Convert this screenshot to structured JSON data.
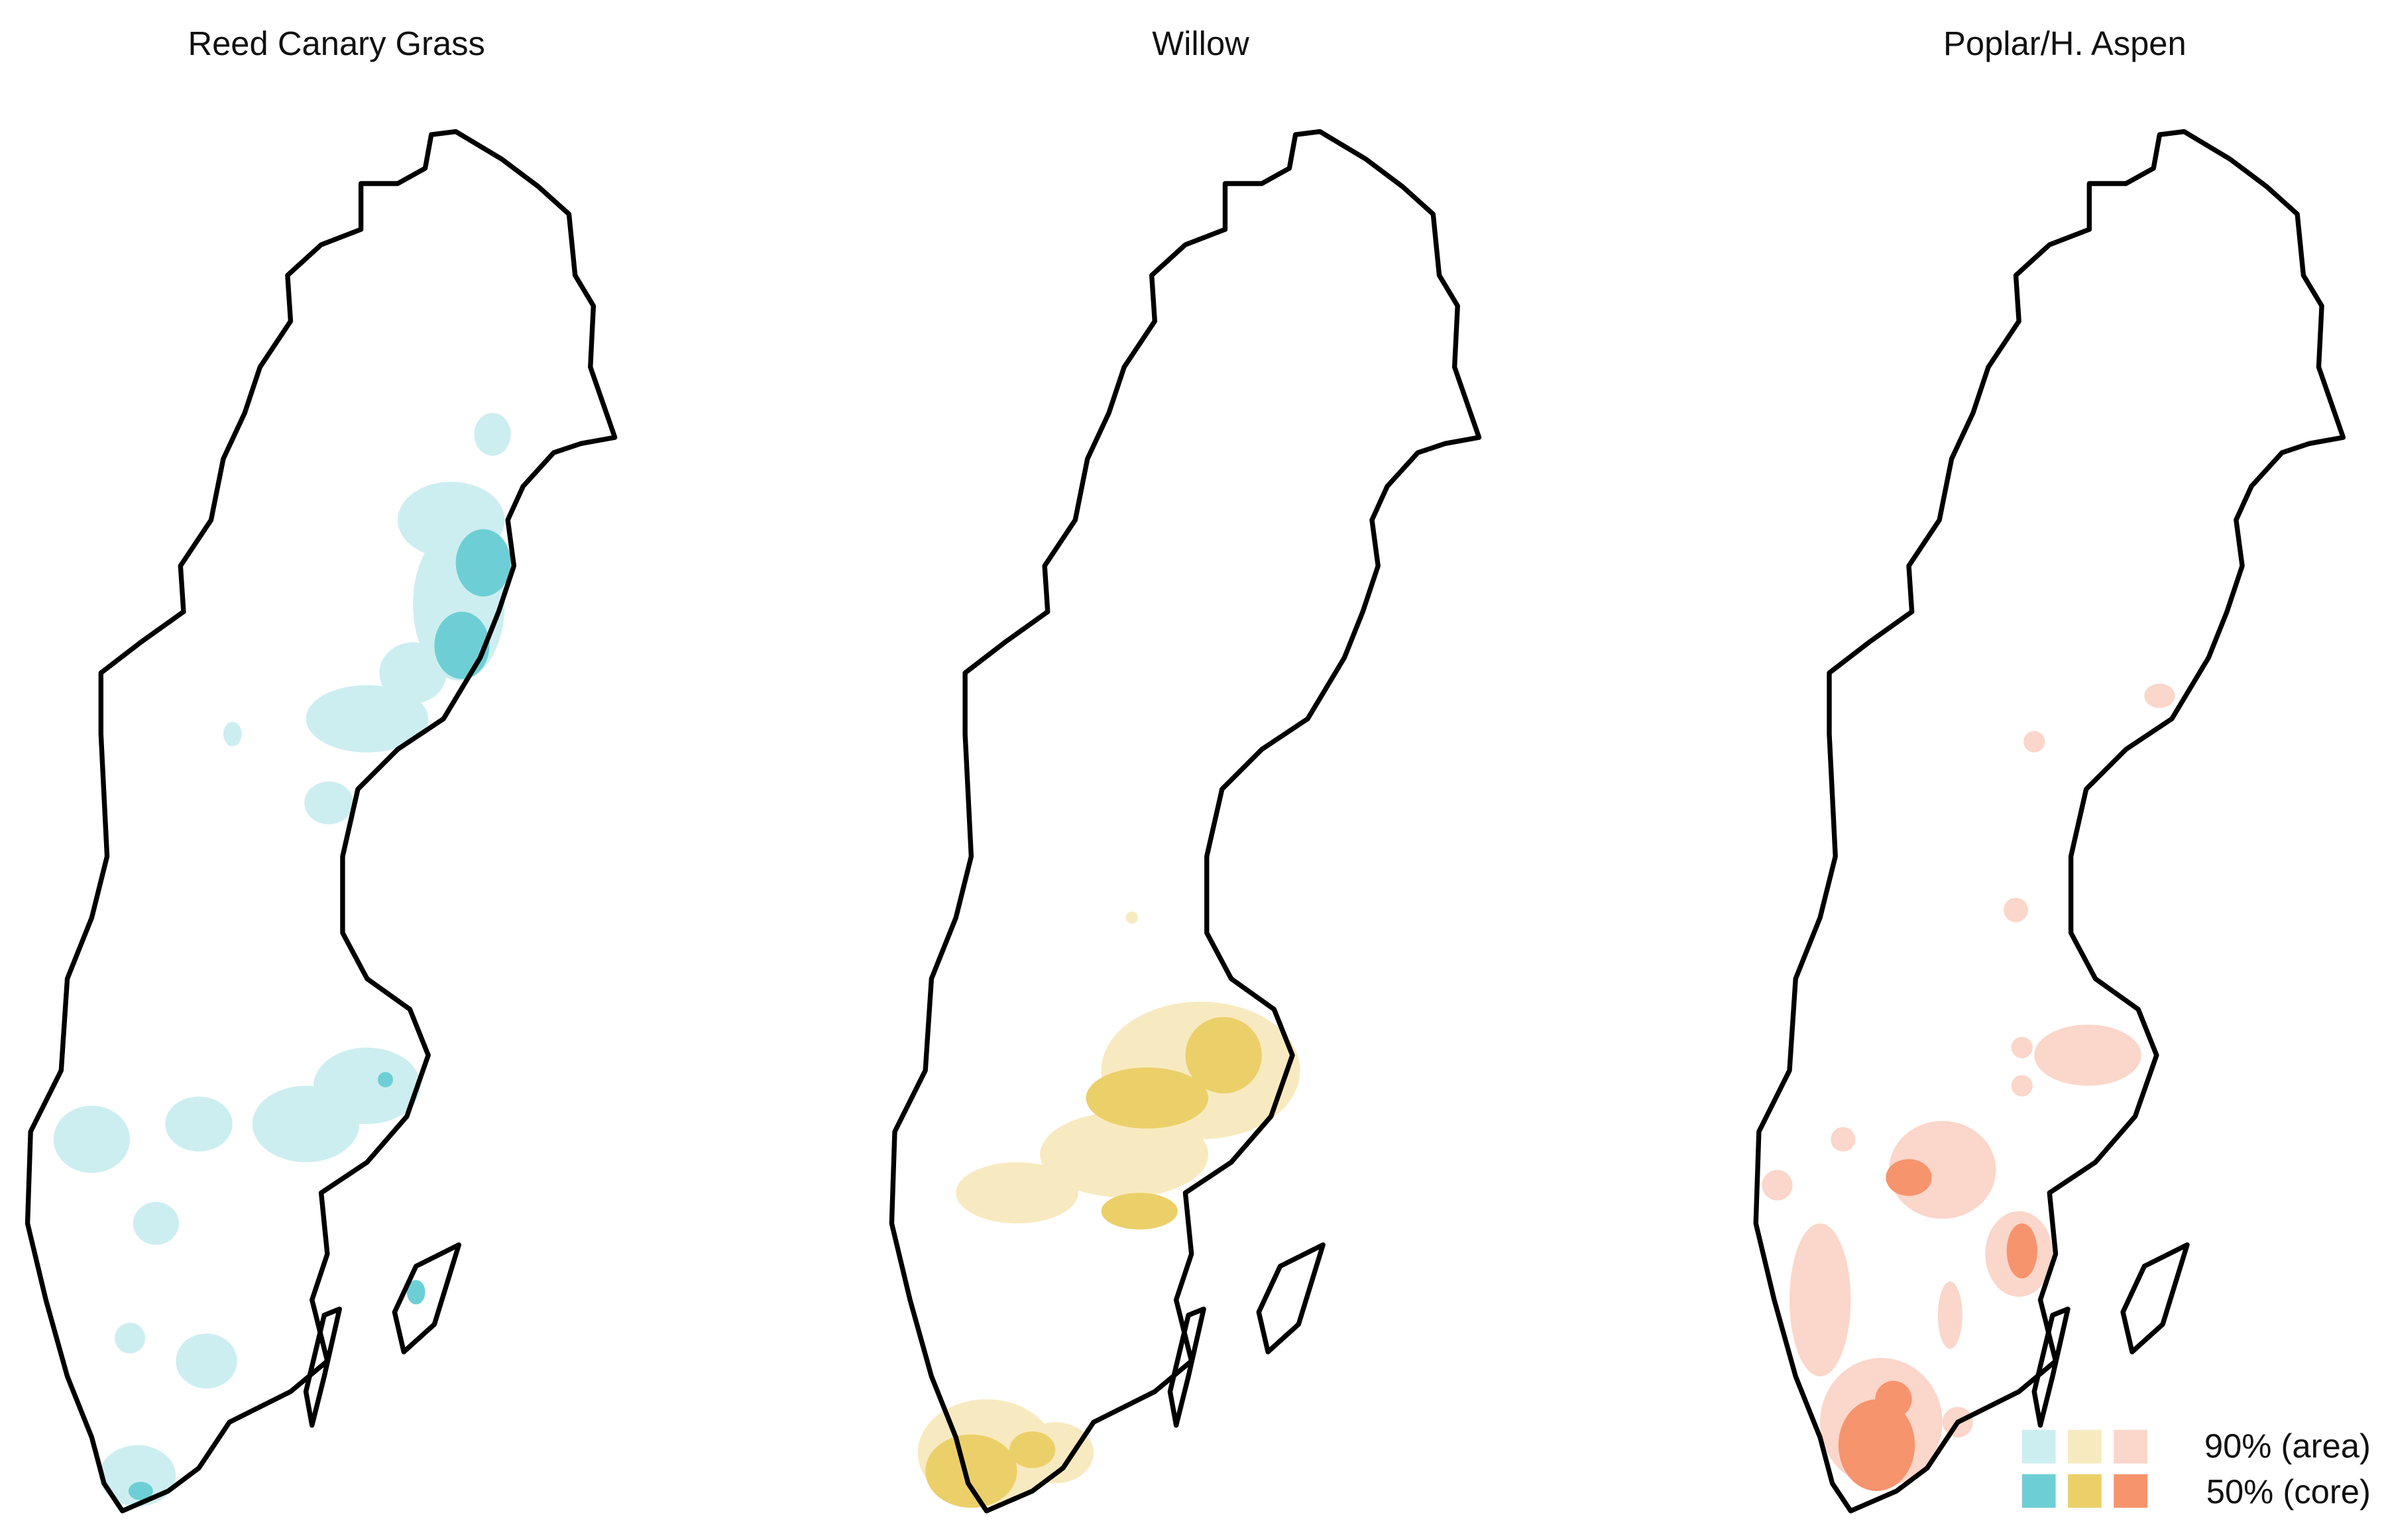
{
  "panels": [
    {
      "title": "Reed Canary Grass",
      "area_color": "#cdeef0",
      "core_color": "#6dcfd5"
    },
    {
      "title": "Willow",
      "area_color": "#f8eac0",
      "core_color": "#ebd06a"
    },
    {
      "title": "Poplar/H. Aspen",
      "area_color": "#fbd6ca",
      "core_color": "#f6946d"
    }
  ],
  "legend": {
    "area": "90% (area)",
    "core": "50% (core)"
  }
}
